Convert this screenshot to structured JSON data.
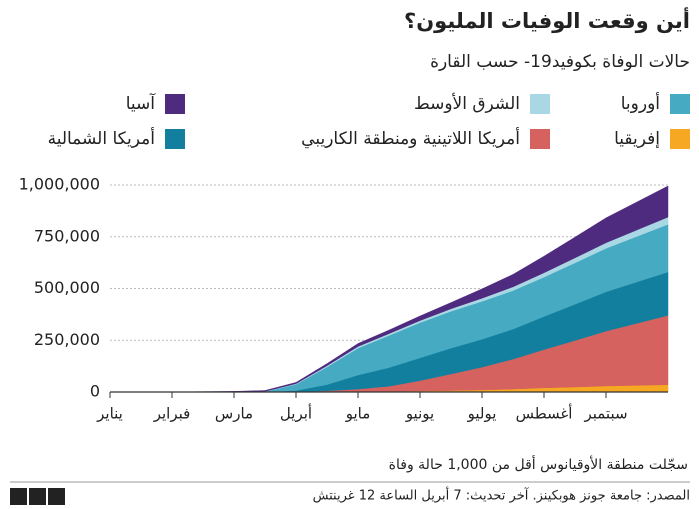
{
  "chart_data": {
    "type": "stacked_area",
    "title": "أين وقعت الوفيات المليون؟",
    "subtitle": "حالات الوفاة بكوفيد19- حسب القارة",
    "categories": [
      "يناير",
      null,
      "فبراير",
      null,
      "مارس",
      null,
      "أبريل",
      null,
      "مايو",
      null,
      "يونيو",
      null,
      "يوليو",
      null,
      "أغسطس",
      null,
      "سبتمبر",
      null,
      null
    ],
    "series": [
      {
        "name": "إفريقيا",
        "color": "#f7a823",
        "values": [
          0,
          0,
          0,
          0,
          0,
          0,
          200,
          1000,
          2000,
          3000,
          5000,
          7000,
          10000,
          14000,
          20000,
          24000,
          29000,
          32000,
          35000
        ]
      },
      {
        "name": "أمريكا اللاتينية ومنطقة الكاريبي",
        "color": "#d5625f",
        "values": [
          0,
          0,
          0,
          0,
          0,
          100,
          1000,
          5000,
          12000,
          25000,
          50000,
          80000,
          110000,
          145000,
          185000,
          225000,
          265000,
          300000,
          335000
        ]
      },
      {
        "name": "أمريكا الشمالية",
        "color": "#137f9e",
        "values": [
          0,
          0,
          0,
          0,
          0,
          100,
          6000,
          30000,
          68000,
          90000,
          110000,
          125000,
          135000,
          145000,
          160000,
          175000,
          190000,
          200000,
          210000
        ]
      },
      {
        "name": "أوروبا",
        "color": "#45aac2",
        "values": [
          0,
          0,
          0,
          0,
          30,
          2000,
          30000,
          85000,
          130000,
          155000,
          170000,
          178000,
          183000,
          186000,
          190000,
          200000,
          210000,
          220000,
          230000
        ]
      },
      {
        "name": "الشرق الأوسط",
        "color": "#a9d7e3",
        "values": [
          0,
          0,
          0,
          0,
          100,
          1000,
          3000,
          6000,
          8000,
          9000,
          10000,
          12000,
          15000,
          18000,
          21000,
          24000,
          27000,
          31000,
          35000
        ]
      },
      {
        "name": "آسيا",
        "color": "#4f2b80",
        "values": [
          0,
          0,
          300,
          1700,
          3000,
          4000,
          6000,
          10000,
          14000,
          17000,
          22000,
          30000,
          45000,
          60000,
          80000,
          100000,
          120000,
          135000,
          150000
        ]
      }
    ],
    "ylim": [
      0,
      1000000
    ],
    "yticks": [
      0,
      {
        "value": 250000,
        "label": "250,000"
      },
      {
        "value": 500000,
        "label": "500,000"
      },
      {
        "value": 750000,
        "label": "750,000"
      },
      {
        "value": 1000000,
        "label": "1,000,000"
      }
    ],
    "grid": true,
    "note": "سجّلت منطقة الأوقيانوس أقل من 1,000 حالة وفاة",
    "source": "المصدر: جامعة جونز هوبكينز. آخر تحديث: 7 أبريل الساعة 12 غرينتش",
    "logo": [
      "B",
      "B",
      "C"
    ]
  }
}
